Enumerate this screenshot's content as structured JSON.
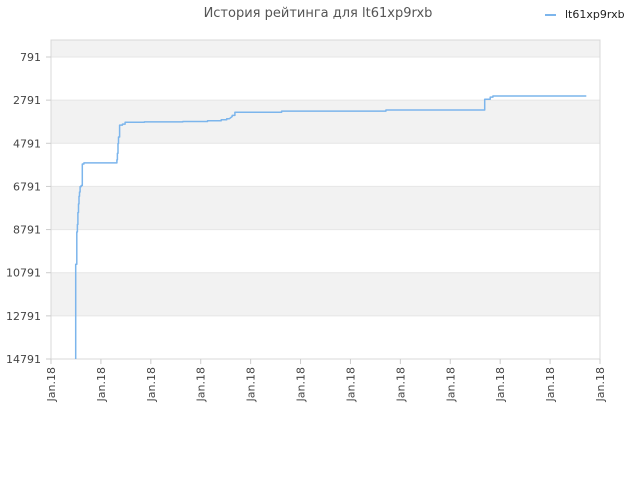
{
  "chart_data": {
    "type": "line",
    "title": "История рейтинга для lt61xp9rxb",
    "xlabel": "",
    "ylabel": "",
    "y_inverted": true,
    "ylim": [
      791,
      14791
    ],
    "y_ticks": [
      791,
      2791,
      4791,
      6791,
      8791,
      10791,
      12791,
      14791
    ],
    "y_tick_labels": [
      "791",
      "2791",
      "4791",
      "6791",
      "8791",
      "10791",
      "12791",
      "14791"
    ],
    "x_tick_labels": [
      "Jan.18",
      "Jan.18",
      "Jan.18",
      "Jan.18",
      "Jan.18",
      "Jan.18",
      "Jan.18",
      "Jan.18",
      "Jan.18",
      "Jan.18",
      "Jan.18",
      "Jan.18"
    ],
    "grid": true,
    "legend_position": "top-right",
    "colors": {
      "line": "#7cb5ec",
      "band": "#f2f2f2",
      "grid": "#e6e6e6"
    },
    "series": [
      {
        "name": "lt61xp9rxb",
        "x": [
          0.045,
          0.045,
          0.047,
          0.047,
          0.048,
          0.048,
          0.049,
          0.049,
          0.05,
          0.05,
          0.051,
          0.051,
          0.052,
          0.052,
          0.053,
          0.053,
          0.055,
          0.055,
          0.057,
          0.057,
          0.06,
          0.06,
          0.062,
          0.062,
          0.065,
          0.065,
          0.07,
          0.085,
          0.12,
          0.12,
          0.121,
          0.121,
          0.122,
          0.122,
          0.123,
          0.123,
          0.125,
          0.125,
          0.13,
          0.13,
          0.135,
          0.135,
          0.14,
          0.17,
          0.17,
          0.24,
          0.24,
          0.285,
          0.285,
          0.31,
          0.31,
          0.32,
          0.32,
          0.325,
          0.33,
          0.33,
          0.335,
          0.335,
          0.34,
          0.34,
          0.345,
          0.345,
          0.35,
          0.35,
          0.36,
          0.42,
          0.42,
          0.5,
          0.6,
          0.61,
          0.61,
          0.7,
          0.79,
          0.79,
          0.8,
          0.8,
          0.805,
          0.805,
          0.81,
          0.85,
          0.9,
          0.95,
          0.975
        ],
        "y": [
          14791,
          10400,
          10400,
          8900,
          8900,
          8550,
          8550,
          8000,
          8000,
          7600,
          7600,
          7250,
          7250,
          7050,
          7050,
          6800,
          6800,
          6750,
          6750,
          5750,
          5750,
          5700,
          5700,
          5700,
          5700,
          5700,
          5700,
          5700,
          5700,
          5550,
          5550,
          5250,
          5250,
          4800,
          4800,
          4500,
          4500,
          3950,
          3950,
          3900,
          3900,
          3820,
          3820,
          3820,
          3800,
          3800,
          3780,
          3780,
          3750,
          3750,
          3700,
          3700,
          3650,
          3650,
          3550,
          3500,
          3500,
          3350,
          3350,
          3350,
          3350,
          3350,
          3350,
          3350,
          3350,
          3350,
          3300,
          3300,
          3300,
          3300,
          3250,
          3250,
          3250,
          2750,
          2750,
          2650,
          2650,
          2600,
          2600,
          2600,
          2600,
          2600,
          2600
        ]
      }
    ]
  }
}
